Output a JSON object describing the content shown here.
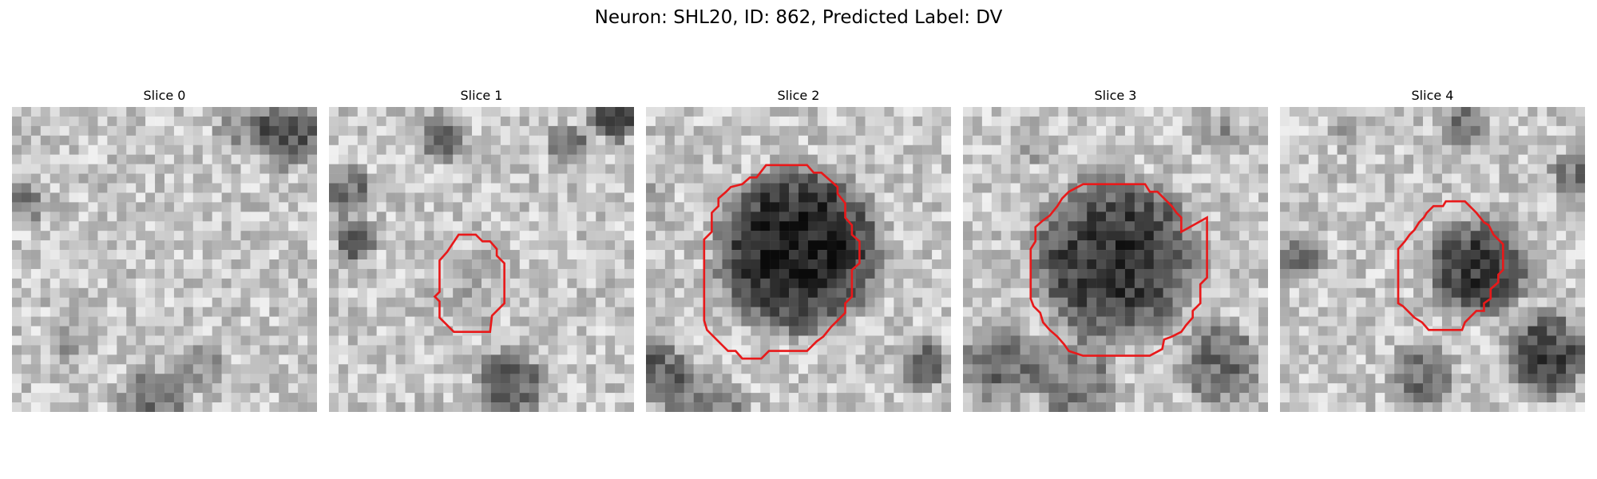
{
  "figure": {
    "title": "Neuron: SHL20, ID: 862, Predicted Label: DV",
    "contour_color": "#e8191a"
  },
  "panels": [
    {
      "title": "Slice 0",
      "has_contour": false
    },
    {
      "title": "Slice 1",
      "has_contour": true
    },
    {
      "title": "Slice 2",
      "has_contour": true
    },
    {
      "title": "Slice 3",
      "has_contour": true
    },
    {
      "title": "Slice 4",
      "has_contour": true
    }
  ]
}
